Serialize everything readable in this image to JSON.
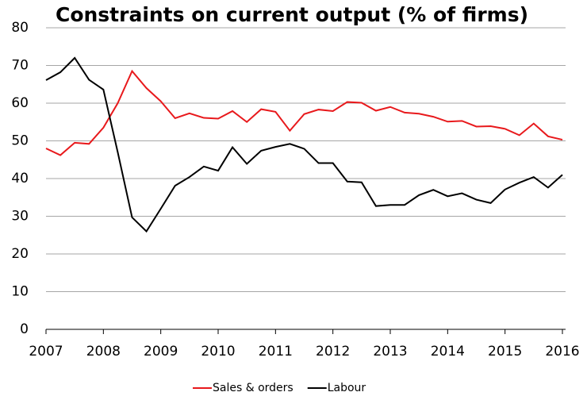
{
  "chart_data": {
    "type": "line",
    "title": "Constraints on current output (% of firms)",
    "x": [
      2007,
      2007.25,
      2007.5,
      2007.75,
      2008,
      2008.25,
      2008.5,
      2008.75,
      2009,
      2009.25,
      2009.5,
      2009.75,
      2010,
      2010.25,
      2010.5,
      2010.75,
      2011,
      2011.25,
      2011.5,
      2011.75,
      2012,
      2012.25,
      2012.5,
      2012.75,
      2013,
      2013.25,
      2013.5,
      2013.75,
      2014,
      2014.25,
      2014.5,
      2014.75,
      2015,
      2015.25,
      2015.5,
      2015.75,
      2016
    ],
    "series": [
      {
        "name": "Sales & orders",
        "color": "#e8191c",
        "values": [
          48,
          46.2,
          49.5,
          49.2,
          53.5,
          60,
          68.5,
          64,
          60.5,
          56,
          57.3,
          56.1,
          55.9,
          57.9,
          55,
          58.4,
          57.7,
          52.7,
          57.1,
          58.3,
          57.9,
          60.3,
          60.1,
          58,
          59,
          57.5,
          57.2,
          56.4,
          55.1,
          55.3,
          53.8,
          53.9,
          53.2,
          51.5,
          54.6,
          51.2,
          50.3
        ]
      },
      {
        "name": "Labour",
        "color": "#000000",
        "values": [
          66.1,
          68.2,
          72,
          66.2,
          63.6,
          47,
          29.7,
          26,
          32,
          38.1,
          40.4,
          43.2,
          42.1,
          48.3,
          43.9,
          47.4,
          48.4,
          49.2,
          47.9,
          44.1,
          44.1,
          39.2,
          39,
          32.7,
          33,
          33,
          35.6,
          37,
          35.3,
          36.1,
          34.4,
          33.5,
          37.1,
          38.9,
          40.4,
          37.6,
          41
        ]
      }
    ],
    "xlim": [
      2007,
      2016
    ],
    "xticks": [
      2007,
      2008,
      2009,
      2010,
      2011,
      2012,
      2013,
      2014,
      2015,
      2016
    ],
    "ylim": [
      0,
      80
    ],
    "yticks": [
      0,
      10,
      20,
      30,
      40,
      50,
      60,
      70,
      80
    ],
    "grid": true,
    "legend": "bottom"
  }
}
